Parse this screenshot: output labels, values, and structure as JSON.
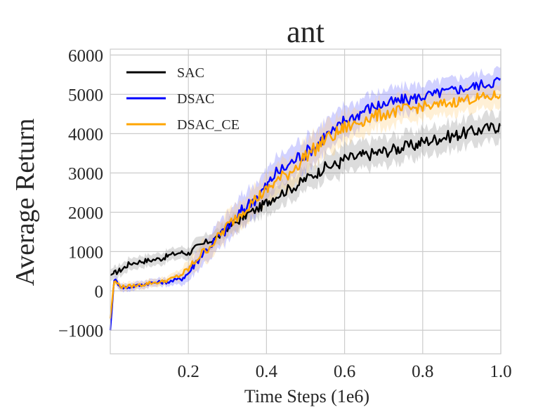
{
  "chart_data": {
    "type": "line",
    "title": "ant",
    "xlabel": "Time Steps (1e6)",
    "ylabel": "Average Return",
    "xlim": [
      0.0,
      1.0
    ],
    "ylim": [
      -1600,
      6150
    ],
    "xticks": [
      0.2,
      0.4,
      0.6,
      0.8,
      1.0
    ],
    "xtick_labels": [
      "0.2",
      "0.4",
      "0.6",
      "0.8",
      "1.0"
    ],
    "yticks": [
      -1000,
      0,
      1000,
      2000,
      3000,
      4000,
      5000,
      6000
    ],
    "ytick_labels": [
      "−1000",
      "0",
      "1000",
      "2000",
      "3000",
      "4000",
      "5000",
      "6000"
    ],
    "grid": true,
    "legend_position": "top-left",
    "series": [
      {
        "name": "SAC",
        "color": "#000000",
        "band_color": "#9a9a9a",
        "x": [
          0.0,
          0.01,
          0.03,
          0.05,
          0.08,
          0.1,
          0.13,
          0.15,
          0.18,
          0.2,
          0.22,
          0.25,
          0.28,
          0.3,
          0.33,
          0.35,
          0.38,
          0.4,
          0.42,
          0.45,
          0.48,
          0.5,
          0.53,
          0.55,
          0.58,
          0.6,
          0.63,
          0.65,
          0.68,
          0.7,
          0.73,
          0.75,
          0.78,
          0.8,
          0.83,
          0.85,
          0.88,
          0.9,
          0.93,
          0.95,
          0.98,
          1.0
        ],
        "y": [
          400,
          450,
          550,
          700,
          750,
          780,
          820,
          900,
          980,
          950,
          1100,
          1250,
          1400,
          1600,
          1800,
          1950,
          2100,
          2250,
          2400,
          2550,
          2700,
          2850,
          3000,
          3150,
          3200,
          3350,
          3400,
          3450,
          3500,
          3550,
          3600,
          3650,
          3700,
          3800,
          3850,
          3900,
          3950,
          4000,
          4050,
          4100,
          4150,
          4200
        ],
        "band": [
          150,
          150,
          150,
          150,
          150,
          150,
          150,
          150,
          150,
          150,
          200,
          200,
          200,
          200,
          250,
          250,
          250,
          300,
          300,
          300,
          300,
          300,
          300,
          300,
          350,
          350,
          350,
          350,
          350,
          350,
          350,
          350,
          350,
          350,
          350,
          350,
          350,
          350,
          350,
          350,
          350,
          350
        ]
      },
      {
        "name": "DSAC",
        "color": "#0000ff",
        "band_color": "#7d7dff",
        "x": [
          0.0,
          0.01,
          0.03,
          0.05,
          0.08,
          0.1,
          0.13,
          0.15,
          0.18,
          0.2,
          0.22,
          0.25,
          0.28,
          0.3,
          0.33,
          0.35,
          0.38,
          0.4,
          0.42,
          0.45,
          0.48,
          0.5,
          0.53,
          0.55,
          0.58,
          0.6,
          0.63,
          0.65,
          0.68,
          0.7,
          0.73,
          0.75,
          0.78,
          0.8,
          0.83,
          0.85,
          0.88,
          0.9,
          0.93,
          0.95,
          0.98,
          1.0
        ],
        "y": [
          -1000,
          300,
          80,
          100,
          150,
          200,
          220,
          230,
          300,
          450,
          750,
          1100,
          1400,
          1600,
          1950,
          2150,
          2450,
          2650,
          2950,
          3150,
          3400,
          3500,
          3750,
          3950,
          4100,
          4350,
          4450,
          4600,
          4700,
          4750,
          4800,
          4850,
          4900,
          4950,
          5000,
          5050,
          5100,
          5150,
          5200,
          5250,
          5300,
          5400
        ],
        "band": [
          0,
          100,
          100,
          100,
          100,
          100,
          100,
          100,
          150,
          200,
          250,
          300,
          350,
          350,
          400,
          400,
          400,
          400,
          400,
          400,
          400,
          400,
          400,
          400,
          400,
          400,
          350,
          350,
          350,
          350,
          350,
          350,
          350,
          300,
          300,
          300,
          300,
          300,
          300,
          300,
          300,
          300
        ]
      },
      {
        "name": "DSAC_CE",
        "color": "#ffa500",
        "band_color": "#ffd589",
        "x": [
          0.0,
          0.01,
          0.03,
          0.05,
          0.08,
          0.1,
          0.13,
          0.15,
          0.18,
          0.2,
          0.22,
          0.25,
          0.28,
          0.3,
          0.33,
          0.35,
          0.38,
          0.4,
          0.42,
          0.45,
          0.48,
          0.5,
          0.53,
          0.55,
          0.58,
          0.6,
          0.63,
          0.65,
          0.68,
          0.7,
          0.73,
          0.75,
          0.78,
          0.8,
          0.83,
          0.85,
          0.88,
          0.9,
          0.93,
          0.95,
          0.98,
          1.0
        ],
        "y": [
          -700,
          250,
          100,
          120,
          150,
          200,
          230,
          280,
          400,
          550,
          800,
          1100,
          1400,
          1650,
          1950,
          2150,
          2400,
          2550,
          2750,
          2950,
          3200,
          3450,
          3650,
          3850,
          4000,
          4150,
          4250,
          4350,
          4450,
          4500,
          4550,
          4600,
          4650,
          4700,
          4700,
          4750,
          4800,
          4850,
          4900,
          4900,
          4950,
          5000
        ],
        "band": [
          0,
          100,
          100,
          100,
          100,
          100,
          100,
          100,
          150,
          200,
          250,
          300,
          300,
          350,
          350,
          350,
          350,
          350,
          400,
          400,
          400,
          400,
          400,
          400,
          400,
          400,
          350,
          350,
          350,
          350,
          350,
          350,
          350,
          300,
          300,
          300,
          300,
          300,
          300,
          300,
          300,
          300
        ]
      }
    ]
  }
}
